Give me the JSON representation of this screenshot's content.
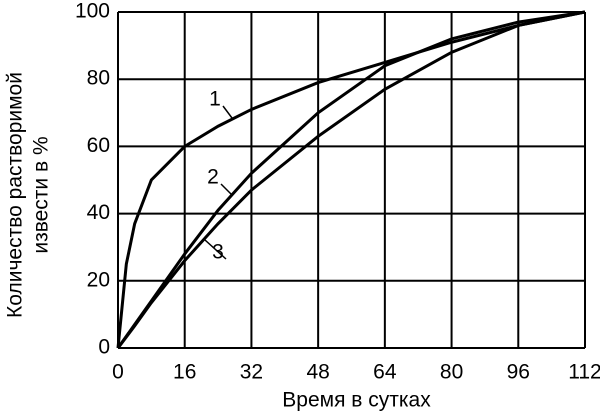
{
  "chart_data": {
    "type": "line",
    "xlabel": "Время в сутках",
    "ylabel": [
      "Количество растворимой",
      "извести в %"
    ],
    "x": [
      0,
      2,
      4,
      8,
      16,
      24,
      32,
      48,
      64,
      80,
      96,
      112
    ],
    "series": [
      {
        "name": "1",
        "color": "#000000",
        "values": [
          0,
          25,
          37,
          50,
          60,
          66,
          71,
          79,
          85,
          91,
          96,
          100
        ]
      },
      {
        "name": "2",
        "color": "#000000",
        "values": [
          0,
          3.5,
          7,
          14,
          28,
          41,
          52,
          70,
          84,
          92,
          97,
          100
        ]
      },
      {
        "name": "3",
        "color": "#000000",
        "values": [
          0,
          3.3,
          6.6,
          13.5,
          26,
          37,
          47,
          63,
          77,
          88,
          96,
          100
        ]
      }
    ],
    "xlim": [
      0,
      112
    ],
    "ylim": [
      0,
      100
    ],
    "xticks": [
      0,
      16,
      32,
      48,
      64,
      80,
      96,
      112
    ],
    "yticks": [
      0,
      20,
      40,
      60,
      80,
      100
    ],
    "grid": true
  }
}
